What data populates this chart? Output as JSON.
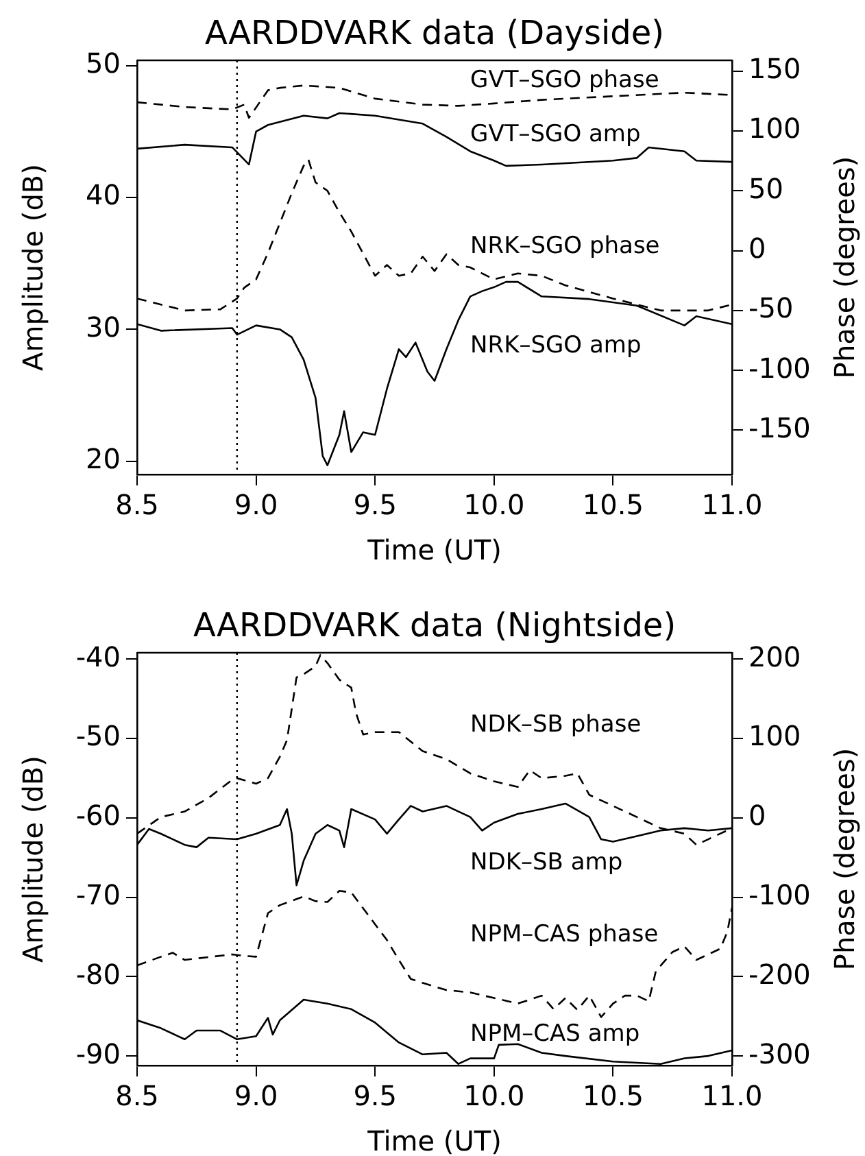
{
  "chart_data": [
    {
      "type": "line",
      "title": "AARDDVARK data (Dayside)",
      "xlabel": "Time (UT)",
      "ylabel": "Amplitude (dB)",
      "y2label": "Phase (degrees)",
      "xlim": [
        8.5,
        11.0
      ],
      "xticks": [
        8.5,
        {
          "value": 9,
          "label": "9.0"
        },
        9.5,
        {
          "value": 10,
          "label": "10.0"
        },
        10.5,
        {
          "value": 11,
          "label": "11.0"
        }
      ],
      "ylim": [
        19,
        50.4
      ],
      "yticks": [
        20,
        30,
        40,
        50
      ],
      "y2lim": [
        -187,
        159
      ],
      "y2ticks": [
        -150,
        -100,
        -50,
        0,
        50,
        100,
        150
      ],
      "grid": false,
      "legend": false,
      "marker": "none",
      "ref_lines": [
        {
          "axis": "x",
          "value": 8.92,
          "line_style": "dotted",
          "color": "#000000"
        }
      ],
      "series": [
        {
          "name": "GVT–SGO phase",
          "color": "#000000",
          "axis": "y2",
          "line_style": "dashed",
          "x": [
            8.5,
            8.7,
            8.9,
            8.95,
            8.97,
            9.05,
            9.1,
            9.2,
            9.35,
            9.5,
            9.7,
            9.85,
            10.0,
            10.2,
            10.5,
            10.8,
            11.0
          ],
          "values": [
            124,
            120,
            118,
            122,
            111,
            134,
            136,
            138,
            136,
            127,
            122,
            121,
            123,
            126,
            129,
            132,
            130
          ]
        },
        {
          "name": "GVT–SGO amp",
          "color": "#000000",
          "axis": "y",
          "line_style": "solid",
          "x": [
            8.5,
            8.7,
            8.9,
            8.97,
            9.0,
            9.05,
            9.2,
            9.3,
            9.35,
            9.5,
            9.7,
            9.8,
            9.9,
            10.0,
            10.05,
            10.2,
            10.5,
            10.6,
            10.65,
            10.8,
            10.85,
            11.0
          ],
          "values": [
            43.7,
            44.0,
            43.8,
            42.5,
            45.0,
            45.5,
            46.2,
            46.0,
            46.4,
            46.2,
            45.6,
            44.6,
            43.5,
            42.8,
            42.4,
            42.5,
            42.8,
            43.0,
            43.8,
            43.5,
            42.8,
            42.7
          ]
        },
        {
          "name": "NRK–SGO phase",
          "color": "#000000",
          "axis": "y2",
          "line_style": "dashed",
          "x": [
            8.5,
            8.7,
            8.85,
            8.92,
            8.95,
            9.0,
            9.05,
            9.1,
            9.15,
            9.2,
            9.22,
            9.25,
            9.3,
            9.35,
            9.4,
            9.5,
            9.55,
            9.6,
            9.65,
            9.7,
            9.75,
            9.8,
            9.85,
            9.9,
            10.0,
            10.1,
            10.2,
            10.3,
            10.5,
            10.7,
            10.9,
            11.0
          ],
          "values": [
            -40,
            -50,
            -49,
            -40,
            -31,
            -24,
            -2,
            23,
            48,
            71,
            76,
            57,
            50,
            32,
            16,
            -21,
            -12,
            -21,
            -19,
            -5,
            -17,
            -3,
            -12,
            -14,
            -24,
            -19,
            -21,
            -29,
            -40,
            -50,
            -50,
            -45
          ]
        },
        {
          "name": "NRK–SGO amp",
          "color": "#000000",
          "axis": "y",
          "line_style": "solid",
          "x": [
            8.5,
            8.6,
            8.9,
            8.92,
            9.0,
            9.1,
            9.15,
            9.2,
            9.25,
            9.28,
            9.3,
            9.35,
            9.37,
            9.4,
            9.45,
            9.5,
            9.55,
            9.6,
            9.63,
            9.67,
            9.72,
            9.75,
            9.8,
            9.85,
            9.9,
            9.95,
            10.0,
            10.05,
            10.1,
            10.2,
            10.4,
            10.6,
            10.8,
            10.85,
            11.0
          ],
          "values": [
            30.4,
            29.9,
            30.1,
            29.6,
            30.3,
            30,
            29.4,
            27.7,
            24.8,
            20.4,
            19.7,
            22,
            23.8,
            20.7,
            22.2,
            22,
            25.5,
            28.5,
            27.9,
            29,
            26.8,
            26.1,
            28.5,
            30.7,
            32.5,
            32.9,
            33.2,
            33.6,
            33.6,
            32.5,
            32.3,
            31.8,
            30.3,
            31,
            30.4
          ]
        }
      ]
    },
    {
      "type": "line",
      "title": "AARDDVARK data (Nightside)",
      "xlabel": "Time (UT)",
      "ylabel": "Amplitude (dB)",
      "y2label": "Phase (degrees)",
      "xlim": [
        8.5,
        11.0
      ],
      "xticks": [
        8.5,
        {
          "value": 9,
          "label": "9.0"
        },
        9.5,
        {
          "value": 10,
          "label": "10.0"
        },
        10.5,
        {
          "value": 11,
          "label": "11.0"
        }
      ],
      "ylim": [
        -91.2,
        -39.2
      ],
      "yticks": [
        -90,
        -80,
        -70,
        -60,
        -50,
        -40
      ],
      "y2lim": [
        -312,
        208
      ],
      "y2ticks": [
        -300,
        -200,
        -100,
        0,
        100,
        200
      ],
      "grid": false,
      "legend": false,
      "marker": "none",
      "ref_lines": [
        {
          "axis": "x",
          "value": 8.92,
          "line_style": "dotted",
          "color": "#000000"
        }
      ],
      "series": [
        {
          "name": "NDK–SB phase",
          "color": "#000000",
          "axis": "y2",
          "line_style": "dashed",
          "x": [
            8.5,
            8.6,
            8.7,
            8.8,
            8.9,
            8.92,
            9.0,
            9.05,
            9.1,
            9.13,
            9.17,
            9.2,
            9.25,
            9.27,
            9.3,
            9.35,
            9.4,
            9.42,
            9.45,
            9.5,
            9.6,
            9.7,
            9.8,
            9.9,
            10.0,
            10.1,
            10.15,
            10.2,
            10.3,
            10.35,
            10.4,
            10.45,
            10.5,
            10.6,
            10.7,
            10.8,
            10.85,
            10.9,
            11.0
          ],
          "values": [
            -20,
            1,
            8,
            25,
            48,
            50,
            43,
            50,
            77,
            98,
            177,
            181,
            191,
            205,
            195,
            174,
            164,
            132,
            105,
            108,
            108,
            84,
            74,
            56,
            46,
            39,
            60,
            50,
            53,
            56,
            29,
            22,
            15,
            1,
            -13,
            -20,
            -34,
            -27,
            -13
          ]
        },
        {
          "name": "NDK–SB amp",
          "color": "#000000",
          "axis": "y",
          "line_style": "solid",
          "x": [
            8.5,
            8.55,
            8.6,
            8.7,
            8.75,
            8.8,
            8.92,
            9.0,
            9.1,
            9.13,
            9.15,
            9.17,
            9.2,
            9.25,
            9.3,
            9.35,
            9.37,
            9.4,
            9.5,
            9.55,
            9.6,
            9.65,
            9.7,
            9.8,
            9.9,
            9.95,
            10.0,
            10.1,
            10.2,
            10.3,
            10.4,
            10.45,
            10.5,
            10.6,
            10.7,
            10.8,
            10.9,
            11.0
          ],
          "values": [
            -63.4,
            -61.4,
            -62,
            -63.4,
            -63.7,
            -62.5,
            -62.7,
            -62,
            -60.9,
            -58.9,
            -62,
            -68.5,
            -65.4,
            -62,
            -60.9,
            -61.6,
            -63.7,
            -58.9,
            -60.2,
            -62,
            -60.2,
            -58.5,
            -59.2,
            -58.5,
            -59.9,
            -61.6,
            -60.6,
            -59.5,
            -58.9,
            -58.2,
            -59.9,
            -62.7,
            -63,
            -62.3,
            -61.6,
            -61.3,
            -61.6,
            -61.3
          ]
        },
        {
          "name": "NPM–CAS phase",
          "color": "#000000",
          "axis": "y2",
          "line_style": "dashed",
          "x": [
            8.5,
            8.6,
            8.65,
            8.7,
            8.9,
            8.95,
            9.0,
            9.05,
            9.1,
            9.2,
            9.25,
            9.3,
            9.35,
            9.4,
            9.5,
            9.55,
            9.6,
            9.65,
            9.7,
            9.8,
            9.9,
            10.0,
            10.1,
            10.2,
            10.25,
            10.3,
            10.35,
            10.4,
            10.45,
            10.5,
            10.55,
            10.6,
            10.65,
            10.68,
            10.75,
            10.8,
            10.85,
            10.9,
            10.95,
            10.98,
            11.0
          ],
          "values": [
            -186,
            -175,
            -170,
            -179,
            -172,
            -174,
            -175,
            -120,
            -110,
            -99,
            -105,
            -106,
            -92,
            -94,
            -134,
            -154,
            -179,
            -203,
            -208,
            -217,
            -220,
            -227,
            -234,
            -224,
            -241,
            -227,
            -242,
            -224,
            -251,
            -234,
            -224,
            -224,
            -231,
            -193,
            -169,
            -162,
            -179,
            -172,
            -165,
            -144,
            -113
          ]
        },
        {
          "name": "NPM–CAS amp",
          "color": "#000000",
          "axis": "y",
          "line_style": "solid",
          "x": [
            8.5,
            8.6,
            8.7,
            8.75,
            8.85,
            8.92,
            9.0,
            9.05,
            9.07,
            9.1,
            9.2,
            9.3,
            9.4,
            9.5,
            9.6,
            9.7,
            9.8,
            9.85,
            9.9,
            10.0,
            10.02,
            10.1,
            10.2,
            10.3,
            10.5,
            10.7,
            10.8,
            10.9,
            11.0
          ],
          "values": [
            -85.5,
            -86.5,
            -87.9,
            -86.8,
            -86.8,
            -87.9,
            -87.5,
            -85.2,
            -87.3,
            -85.5,
            -82.9,
            -83.4,
            -84.1,
            -85.8,
            -88.3,
            -89.8,
            -89.6,
            -91,
            -90.3,
            -90.3,
            -88.6,
            -88.5,
            -89.6,
            -90,
            -90.7,
            -91,
            -90.3,
            -90,
            -89.3
          ]
        }
      ]
    }
  ]
}
